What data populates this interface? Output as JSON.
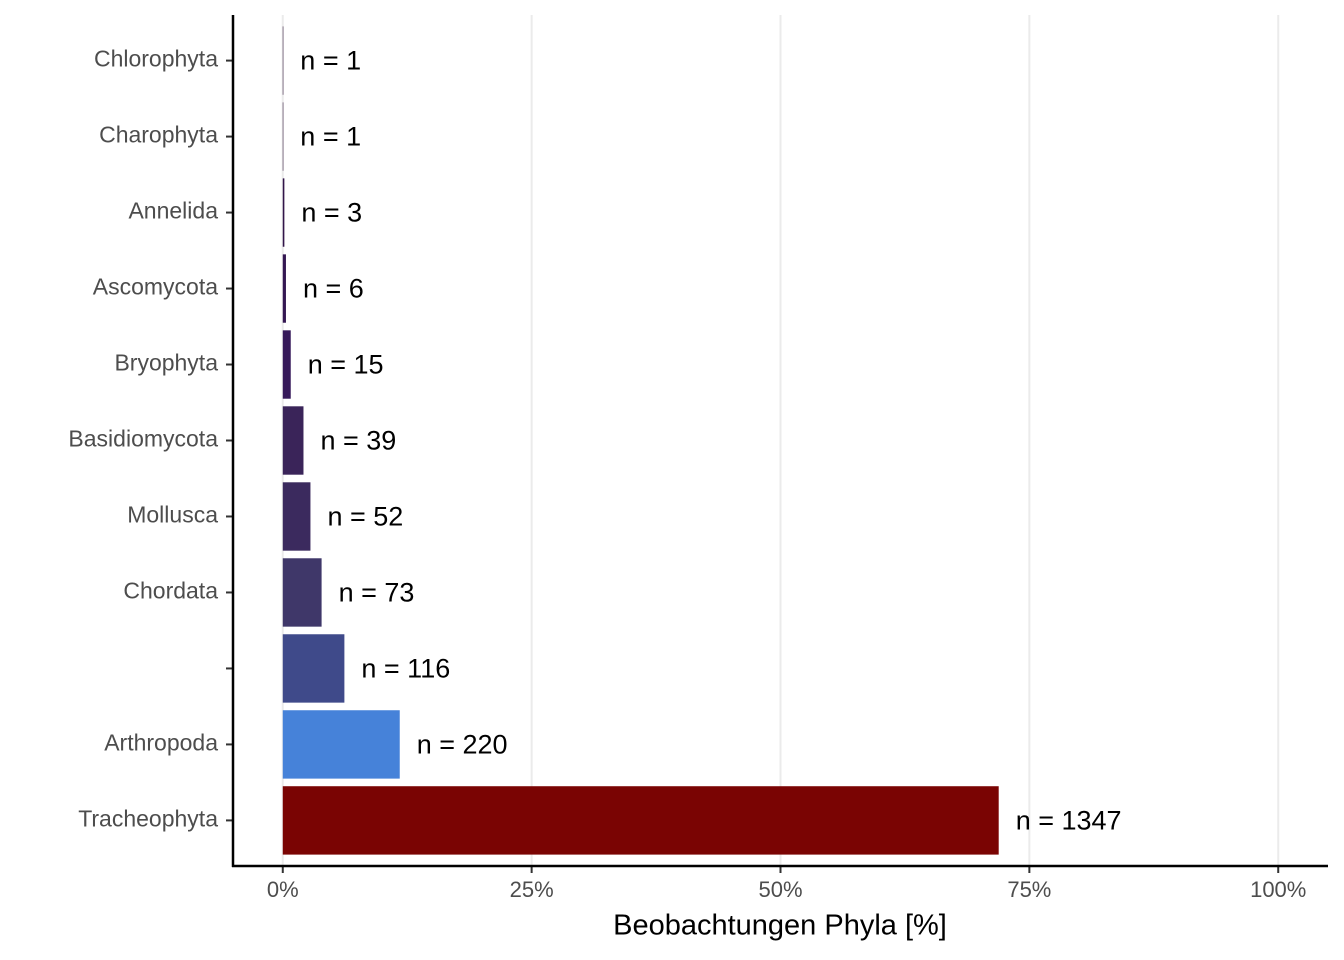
{
  "chart_data": {
    "type": "bar",
    "orientation": "horizontal",
    "x_label": "Beobachtungen Phyla [%]",
    "categories": [
      "Chlorophyta",
      "Charophyta",
      "Annelida",
      "Ascomycota",
      "Bryophyta",
      "Basidiomycota",
      "Mollusca",
      "Chordata",
      null,
      "Arthropoda",
      "Tracheophyta"
    ],
    "values": [
      0.053,
      0.053,
      0.16,
      0.32,
      0.8,
      2.08,
      2.78,
      3.9,
      6.19,
      11.75,
      71.92
    ],
    "annotations": [
      "n = 1",
      "n = 1",
      "n = 3",
      "n = 6",
      "n = 15",
      "n = 39",
      "n = 52",
      "n = 73",
      "n = 116",
      "n = 220",
      "n = 1347"
    ],
    "colors": [
      "#30123b",
      "#30123b",
      "#32154a",
      "#341752",
      "#36195a",
      "#3a2459",
      "#3b2a5e",
      "#3f3769",
      "#3f4a8a",
      "#4682d9",
      "#7a0403"
    ],
    "xlim": [
      -5,
      105
    ],
    "xticks": [
      {
        "value": 0,
        "label": "0%"
      },
      {
        "value": 25,
        "label": "25%"
      },
      {
        "value": 50,
        "label": "50%"
      },
      {
        "value": 75,
        "label": "75%"
      },
      {
        "value": 100,
        "label": "100%"
      }
    ],
    "grid": true
  }
}
